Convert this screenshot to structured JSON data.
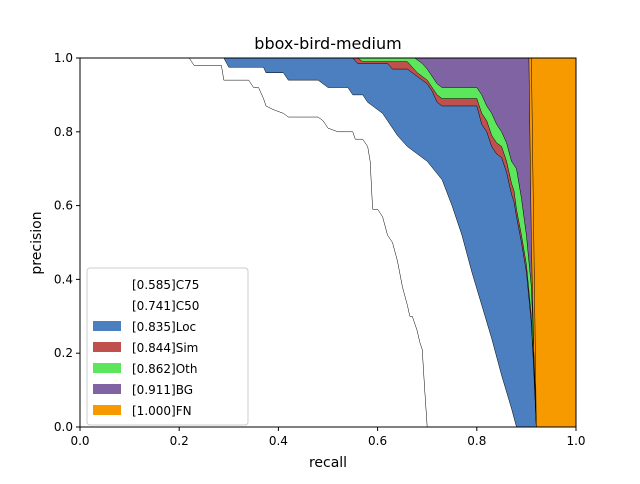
{
  "chart_data": {
    "type": "area",
    "title": "bbox-bird-medium",
    "xlabel": "recall",
    "ylabel": "precision",
    "xlim": [
      0,
      1
    ],
    "ylim": [
      0,
      1
    ],
    "xticks": [
      "0.0",
      "0.2",
      "0.4",
      "0.6",
      "0.8",
      "1.0"
    ],
    "yticks": [
      "0.0",
      "0.2",
      "0.4",
      "0.6",
      "0.8",
      "1.0"
    ],
    "grid": false,
    "legend_position": "lower-left",
    "series": [
      {
        "name": "[0.585]C75",
        "color": "#ffffff",
        "points": [
          [
            0,
            1
          ],
          [
            0.22,
            1
          ],
          [
            0.23,
            0.98
          ],
          [
            0.285,
            0.98
          ],
          [
            0.29,
            0.94
          ],
          [
            0.34,
            0.94
          ],
          [
            0.35,
            0.92
          ],
          [
            0.36,
            0.92
          ],
          [
            0.37,
            0.89
          ],
          [
            0.375,
            0.87
          ],
          [
            0.39,
            0.86
          ],
          [
            0.41,
            0.85
          ],
          [
            0.42,
            0.84
          ],
          [
            0.48,
            0.84
          ],
          [
            0.49,
            0.83
          ],
          [
            0.5,
            0.81
          ],
          [
            0.52,
            0.8
          ],
          [
            0.55,
            0.8
          ],
          [
            0.555,
            0.78
          ],
          [
            0.57,
            0.78
          ],
          [
            0.58,
            0.76
          ],
          [
            0.585,
            0.72
          ],
          [
            0.59,
            0.59
          ],
          [
            0.6,
            0.59
          ],
          [
            0.61,
            0.57
          ],
          [
            0.62,
            0.52
          ],
          [
            0.63,
            0.5
          ],
          [
            0.64,
            0.45
          ],
          [
            0.65,
            0.38
          ],
          [
            0.66,
            0.33
          ],
          [
            0.665,
            0.3
          ],
          [
            0.67,
            0.3
          ],
          [
            0.68,
            0.26
          ],
          [
            0.685,
            0.23
          ],
          [
            0.69,
            0.21
          ],
          [
            0.695,
            0.1
          ],
          [
            0.7,
            0.0
          ]
        ]
      },
      {
        "name": "[0.741]C50",
        "color": "#ffffff",
        "points": [
          [
            0,
            1
          ],
          [
            0.29,
            1
          ],
          [
            0.3,
            0.975
          ],
          [
            0.37,
            0.975
          ],
          [
            0.375,
            0.96
          ],
          [
            0.41,
            0.96
          ],
          [
            0.42,
            0.94
          ],
          [
            0.48,
            0.94
          ],
          [
            0.5,
            0.92
          ],
          [
            0.54,
            0.92
          ],
          [
            0.55,
            0.9
          ],
          [
            0.57,
            0.9
          ],
          [
            0.58,
            0.88
          ],
          [
            0.6,
            0.86
          ],
          [
            0.61,
            0.85
          ],
          [
            0.62,
            0.83
          ],
          [
            0.63,
            0.81
          ],
          [
            0.64,
            0.79
          ],
          [
            0.66,
            0.76
          ],
          [
            0.7,
            0.72
          ],
          [
            0.73,
            0.67
          ],
          [
            0.75,
            0.6
          ],
          [
            0.77,
            0.52
          ],
          [
            0.79,
            0.42
          ],
          [
            0.81,
            0.33
          ],
          [
            0.83,
            0.24
          ],
          [
            0.85,
            0.14
          ],
          [
            0.87,
            0.05
          ],
          [
            0.88,
            0.0
          ]
        ]
      },
      {
        "name": "[0.835]Loc",
        "color": "#4c7fbf",
        "points": [
          [
            0,
            1
          ],
          [
            0.55,
            1
          ],
          [
            0.56,
            0.985
          ],
          [
            0.62,
            0.985
          ],
          [
            0.63,
            0.97
          ],
          [
            0.66,
            0.97
          ],
          [
            0.68,
            0.95
          ],
          [
            0.7,
            0.93
          ],
          [
            0.71,
            0.91
          ],
          [
            0.72,
            0.88
          ],
          [
            0.73,
            0.87
          ],
          [
            0.8,
            0.87
          ],
          [
            0.81,
            0.82
          ],
          [
            0.82,
            0.8
          ],
          [
            0.83,
            0.76
          ],
          [
            0.84,
            0.74
          ],
          [
            0.85,
            0.73
          ],
          [
            0.86,
            0.69
          ],
          [
            0.87,
            0.63
          ],
          [
            0.875,
            0.61
          ],
          [
            0.88,
            0.57
          ],
          [
            0.89,
            0.5
          ],
          [
            0.9,
            0.42
          ],
          [
            0.91,
            0.28
          ],
          [
            0.915,
            0.15
          ],
          [
            0.92,
            0.0
          ]
        ]
      },
      {
        "name": "[0.844]Sim",
        "color": "#c0504d",
        "points": [
          [
            0,
            1
          ],
          [
            0.56,
            1
          ],
          [
            0.57,
            0.99
          ],
          [
            0.66,
            0.99
          ],
          [
            0.68,
            0.96
          ],
          [
            0.7,
            0.94
          ],
          [
            0.71,
            0.92
          ],
          [
            0.72,
            0.9
          ],
          [
            0.73,
            0.89
          ],
          [
            0.8,
            0.89
          ],
          [
            0.81,
            0.85
          ],
          [
            0.82,
            0.83
          ],
          [
            0.83,
            0.79
          ],
          [
            0.84,
            0.77
          ],
          [
            0.85,
            0.76
          ],
          [
            0.86,
            0.72
          ],
          [
            0.87,
            0.66
          ],
          [
            0.875,
            0.64
          ],
          [
            0.88,
            0.59
          ],
          [
            0.89,
            0.52
          ],
          [
            0.9,
            0.44
          ],
          [
            0.91,
            0.3
          ],
          [
            0.915,
            0.16
          ],
          [
            0.92,
            0.0
          ]
        ]
      },
      {
        "name": "[0.862]Oth",
        "color": "#5ce65c",
        "points": [
          [
            0,
            1
          ],
          [
            0.675,
            1
          ],
          [
            0.69,
            0.985
          ],
          [
            0.7,
            0.97
          ],
          [
            0.71,
            0.95
          ],
          [
            0.72,
            0.93
          ],
          [
            0.73,
            0.92
          ],
          [
            0.8,
            0.92
          ],
          [
            0.81,
            0.9
          ],
          [
            0.82,
            0.87
          ],
          [
            0.83,
            0.85
          ],
          [
            0.84,
            0.82
          ],
          [
            0.85,
            0.8
          ],
          [
            0.86,
            0.77
          ],
          [
            0.87,
            0.72
          ],
          [
            0.88,
            0.7
          ],
          [
            0.89,
            0.62
          ],
          [
            0.9,
            0.52
          ],
          [
            0.91,
            0.38
          ],
          [
            0.915,
            0.2
          ],
          [
            0.92,
            0.0
          ]
        ]
      },
      {
        "name": "[0.911]BG",
        "color": "#8063a2",
        "points": [
          [
            0,
            1
          ],
          [
            0.905,
            1
          ],
          [
            0.91,
            0.5
          ],
          [
            0.915,
            0.2
          ],
          [
            0.92,
            0.0
          ]
        ]
      },
      {
        "name": "[1.000]FN",
        "color": "#f79a00",
        "points": [
          [
            0,
            1
          ],
          [
            0.91,
            1
          ],
          [
            0.915,
            0.5
          ],
          [
            0.92,
            0.0
          ]
        ]
      }
    ]
  }
}
